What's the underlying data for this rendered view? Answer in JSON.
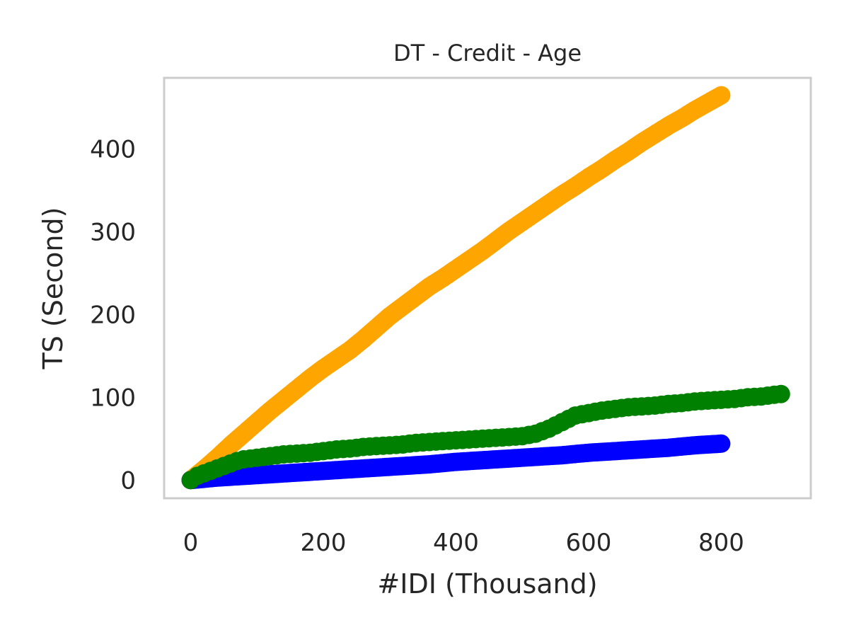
{
  "chart_data": {
    "type": "scatter",
    "title": "DT - Credit - Age",
    "xlabel": "#IDI (Thousand)",
    "ylabel": "TS (Second)",
    "xlim": [
      -40,
      935
    ],
    "ylim": [
      -22,
      486
    ],
    "xticks": [
      0,
      200,
      400,
      600,
      800
    ],
    "yticks": [
      0,
      100,
      200,
      300,
      400
    ],
    "grid": false,
    "series": [
      {
        "color": "#FFA500",
        "x": [
          0,
          20,
          40,
          60,
          80,
          100,
          120,
          140,
          160,
          180,
          200,
          220,
          240,
          260,
          280,
          300,
          320,
          340,
          360,
          380,
          400,
          420,
          440,
          460,
          480,
          500,
          520,
          540,
          560,
          580,
          600,
          620,
          640,
          660,
          680,
          700,
          720,
          740,
          760,
          780,
          800
        ],
        "y": [
          0,
          13,
          27,
          42,
          56,
          70,
          84,
          97,
          110,
          123,
          135,
          146,
          157,
          170,
          184,
          198,
          210,
          222,
          234,
          244,
          255,
          266,
          277,
          289,
          301,
          312,
          323,
          334,
          345,
          355,
          366,
          376,
          387,
          397,
          408,
          418,
          428,
          437,
          447,
          456,
          465
        ]
      },
      {
        "color": "#0000FF",
        "x": [
          0,
          40,
          80,
          120,
          160,
          200,
          240,
          280,
          320,
          360,
          400,
          440,
          480,
          520,
          560,
          600,
          640,
          680,
          720,
          760,
          800
        ],
        "y": [
          0,
          3,
          5,
          7,
          9,
          11,
          13,
          15,
          17,
          19,
          22,
          24,
          26,
          28,
          30,
          33,
          35,
          37,
          39,
          42,
          44
        ]
      },
      {
        "color": "#008000",
        "x": [
          0,
          10,
          20,
          30,
          40,
          50,
          60,
          70,
          80,
          100,
          120,
          140,
          160,
          180,
          200,
          220,
          240,
          260,
          280,
          300,
          320,
          340,
          360,
          380,
          400,
          420,
          440,
          460,
          480,
          500,
          520,
          540,
          560,
          580,
          600,
          620,
          640,
          660,
          680,
          700,
          720,
          740,
          760,
          780,
          800,
          820,
          840,
          860,
          880,
          890
        ],
        "y": [
          0,
          5,
          8,
          11,
          14,
          17,
          20,
          23,
          25,
          27,
          29,
          31,
          32,
          33,
          35,
          37,
          38,
          40,
          41,
          42,
          43,
          45,
          46,
          47,
          48,
          49,
          50,
          51,
          52,
          53,
          56,
          62,
          70,
          78,
          81,
          84,
          86,
          88,
          89,
          90,
          92,
          93,
          95,
          96,
          97,
          98,
          100,
          101,
          103,
          104
        ]
      }
    ]
  }
}
